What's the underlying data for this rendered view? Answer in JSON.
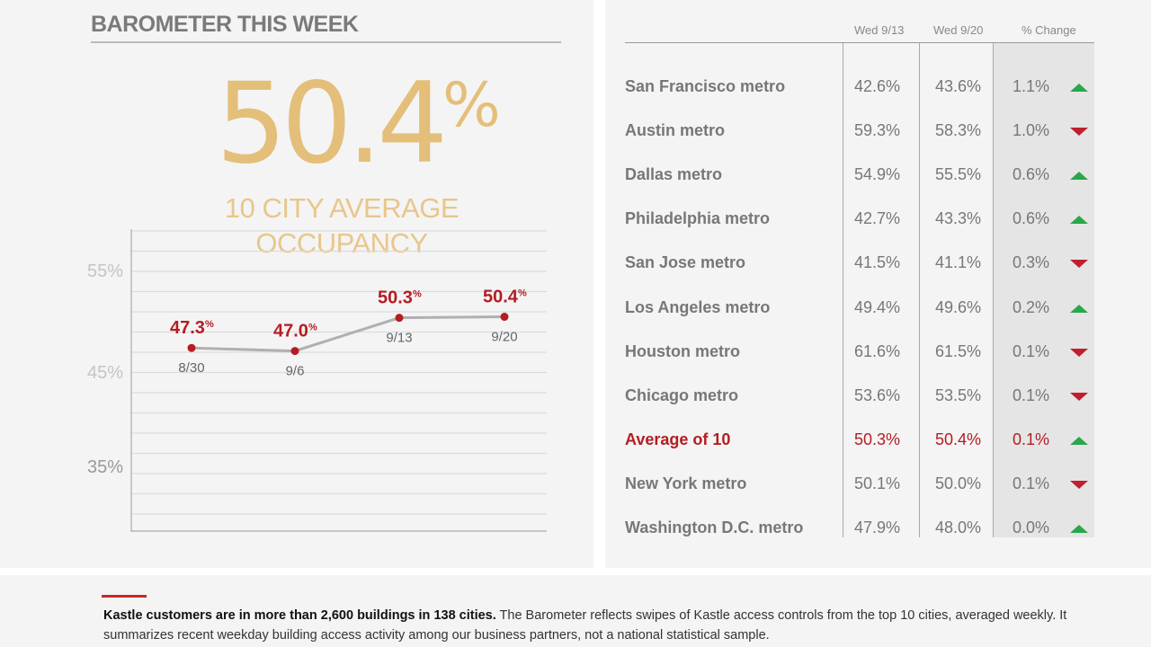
{
  "header": {
    "title": "BAROMETER THIS WEEK"
  },
  "headline": {
    "value": "50.4",
    "unit": "%",
    "label_line1": "10 CITY AVERAGE",
    "label_line2": "OCCUPANCY",
    "color": "#e4bf7a"
  },
  "chart_data": {
    "type": "line",
    "x": [
      "8/30",
      "9/6",
      "9/13",
      "9/20"
    ],
    "series": [
      {
        "values": [
          47.3,
          47.0,
          50.3,
          50.4
        ],
        "labels": [
          "47.3",
          "47.0",
          "50.3",
          "50.4"
        ],
        "label_unit": "%"
      }
    ],
    "y_ticks": [
      "55%",
      "45%",
      "35%"
    ],
    "ylim": [
      30,
      58
    ],
    "grid": true,
    "colors": {
      "line": "#b0b0b0",
      "point": "#b61c22",
      "value_label": "#b61c22",
      "x_label": "#666666",
      "grid": "#dcdcdc",
      "y_tick": "#c4c4c4"
    }
  },
  "table": {
    "columns": [
      "Wed 9/13",
      "Wed 9/20",
      "% Change"
    ],
    "rows": [
      {
        "city": "San Francisco metro",
        "v1": "42.6%",
        "v2": "43.6%",
        "change": "1.1%",
        "direction": "up"
      },
      {
        "city": "Austin metro",
        "v1": "59.3%",
        "v2": "58.3%",
        "change": "1.0%",
        "direction": "down"
      },
      {
        "city": "Dallas metro",
        "v1": "54.9%",
        "v2": "55.5%",
        "change": "0.6%",
        "direction": "up"
      },
      {
        "city": "Philadelphia metro",
        "v1": "42.7%",
        "v2": "43.3%",
        "change": "0.6%",
        "direction": "up"
      },
      {
        "city": "San Jose metro",
        "v1": "41.5%",
        "v2": "41.1%",
        "change": "0.3%",
        "direction": "down"
      },
      {
        "city": "Los Angeles metro",
        "v1": "49.4%",
        "v2": "49.6%",
        "change": "0.2%",
        "direction": "up"
      },
      {
        "city": "Houston metro",
        "v1": "61.6%",
        "v2": "61.5%",
        "change": "0.1%",
        "direction": "down"
      },
      {
        "city": "Chicago metro",
        "v1": "53.6%",
        "v2": "53.5%",
        "change": "0.1%",
        "direction": "down"
      },
      {
        "city": "Average of 10",
        "v1": "50.3%",
        "v2": "50.4%",
        "change": "0.1%",
        "direction": "up",
        "highlight": true
      },
      {
        "city": "New York metro",
        "v1": "50.1%",
        "v2": "50.0%",
        "change": "0.1%",
        "direction": "down"
      },
      {
        "city": "Washington D.C. metro",
        "v1": "47.9%",
        "v2": "48.0%",
        "change": "0.0%",
        "direction": "up"
      }
    ],
    "colors": {
      "up": "#2aa64b",
      "down": "#c01f2f",
      "highlight": "#b61c22"
    }
  },
  "footer": {
    "lead": "Kastle customers are in more than 2,600 buildings in 138 cities.",
    "body": " The Barometer reflects swipes of Kastle access controls from the top 10 cities, averaged weekly. It summarizes recent weekday building access activity among our business partners, not a national statistical sample.",
    "accent_color": "#c62828"
  }
}
